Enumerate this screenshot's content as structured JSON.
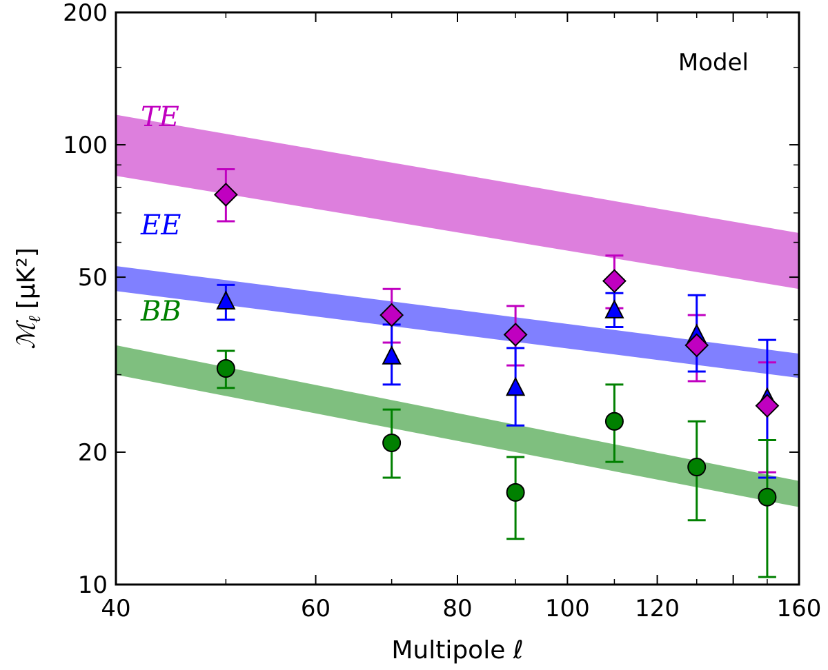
{
  "chart_data": {
    "type": "scatter",
    "xlabel": "Multipole ℓ",
    "ylabel_main": "ℳ",
    "ylabel_sub": "ℓ",
    "ylabel_unit": "[μK²]",
    "xscale": "log",
    "yscale": "log",
    "xlim": [
      40,
      160
    ],
    "ylim": [
      10,
      200
    ],
    "x_ticks": [
      40,
      60,
      80,
      100,
      120,
      140,
      160
    ],
    "x_tick_labels": [
      "40",
      "60",
      "80",
      "100",
      "120",
      "",
      "160"
    ],
    "y_ticks": [
      10,
      20,
      50,
      100,
      200
    ],
    "y_tick_labels": [
      "10",
      "20",
      "50",
      "100",
      "200"
    ],
    "annotation": "Model",
    "bands": [
      {
        "name": "TE",
        "color": "#dd7fdd",
        "x": [
          40,
          160
        ],
        "lower": [
          85,
          47
        ],
        "upper": [
          117,
          63
        ]
      },
      {
        "name": "EE",
        "color": "#8080ff",
        "x": [
          40,
          160
        ],
        "lower": [
          46.5,
          29.5
        ],
        "upper": [
          53,
          33.5
        ]
      },
      {
        "name": "BB",
        "color": "#7fbf7f",
        "x": [
          40,
          160
        ],
        "lower": [
          30,
          15
        ],
        "upper": [
          35,
          17.2
        ]
      }
    ],
    "series": [
      {
        "name": "TE",
        "marker": "diamond",
        "color": "#c000c0",
        "fill": "#c000c0",
        "x": [
          50,
          70,
          90,
          110,
          130,
          150
        ],
        "y": [
          77,
          41,
          37,
          49,
          35,
          25.5
        ],
        "err_low": [
          67,
          35.5,
          31.5,
          42.5,
          29,
          18
        ],
        "err_high": [
          88,
          47,
          43,
          56,
          41,
          32
        ]
      },
      {
        "name": "EE",
        "marker": "triangle",
        "color": "#0000ff",
        "fill": "#0000ff",
        "x": [
          50,
          70,
          90,
          110,
          130,
          150
        ],
        "y": [
          44,
          33,
          28,
          42,
          37,
          26.5
        ],
        "err_low": [
          40,
          28.5,
          23,
          38.5,
          30.5,
          17.5
        ],
        "err_high": [
          48,
          39,
          34.5,
          46,
          45.5,
          36
        ]
      },
      {
        "name": "BB",
        "marker": "circle",
        "color": "#008000",
        "fill": "#008000",
        "x": [
          50,
          70,
          90,
          110,
          130,
          150
        ],
        "y": [
          31,
          21,
          16.2,
          23.5,
          18.5,
          15.8
        ],
        "err_low": [
          28,
          17.5,
          12.7,
          19,
          14,
          10.4
        ],
        "err_high": [
          34,
          25,
          19.5,
          28.5,
          23.5,
          21.3
        ]
      }
    ]
  }
}
